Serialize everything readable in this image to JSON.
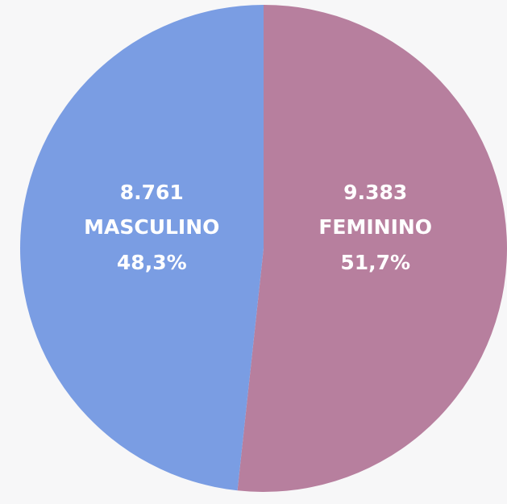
{
  "chart_data": {
    "type": "pie",
    "categories": [
      "FEMININO",
      "MASCULINO"
    ],
    "values": [
      9383,
      8761
    ],
    "value_labels": [
      "9.383",
      "8.761"
    ],
    "percentages": [
      51.7,
      48.3
    ],
    "percentage_labels": [
      "51,7%",
      "48,3%"
    ],
    "colors": [
      "#b77f9e",
      "#7a9de3"
    ]
  }
}
